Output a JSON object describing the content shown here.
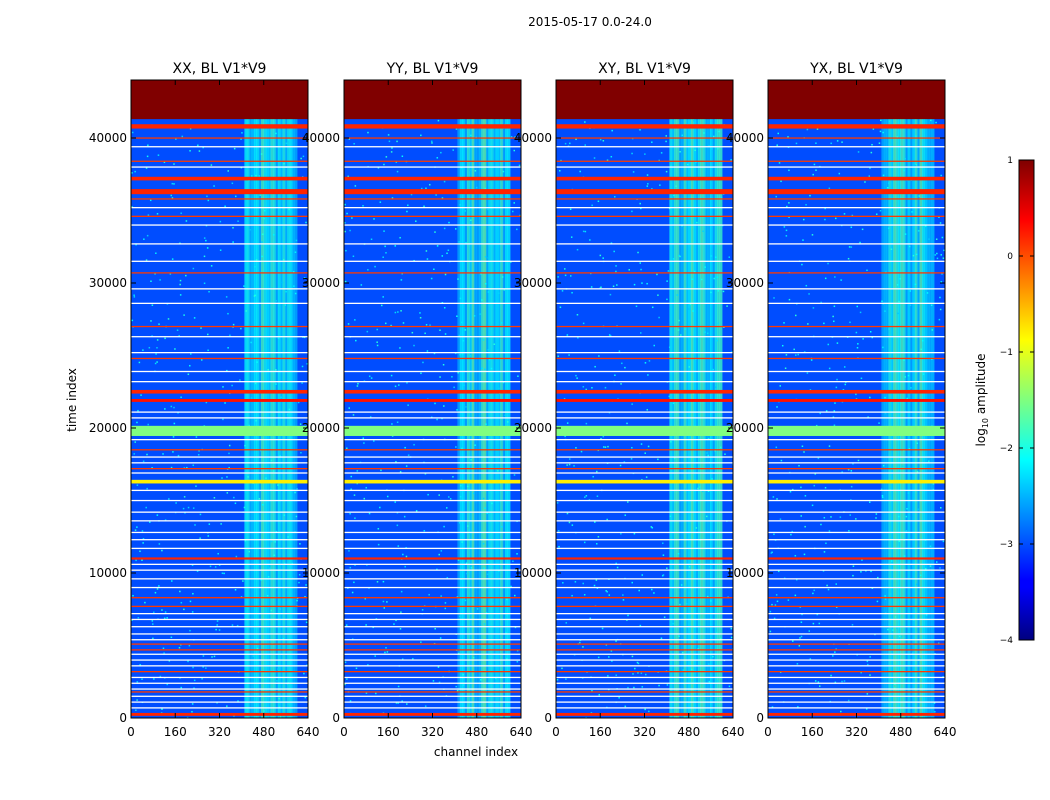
{
  "chart_data": {
    "type": "heatmap",
    "suptitle": "2015-05-17 0.0-24.0",
    "xlabel": "channel index",
    "ylabel": "time index",
    "xlim": [
      0,
      640
    ],
    "ylim": [
      0,
      44000
    ],
    "x_ticks": [
      0,
      160,
      320,
      480,
      640
    ],
    "x_tick_labels": [
      "0",
      "160",
      "320",
      "480",
      "640"
    ],
    "y_ticks": [
      0,
      10000,
      20000,
      30000,
      40000
    ],
    "y_tick_labels": [
      "0",
      "10000",
      "20000",
      "30000",
      "40000"
    ],
    "panels": [
      {
        "title": "XX, BL V1*V9"
      },
      {
        "title": "YY, BL V1*V9"
      },
      {
        "title": "XY, BL V1*V9"
      },
      {
        "title": "YX, BL V1*V9"
      }
    ],
    "colorbar": {
      "label_prefix": "log",
      "label_sub": "10",
      "label_suffix": " amplitude",
      "range": [
        -4,
        1
      ],
      "ticks": [
        1,
        0,
        -1,
        -2,
        -3,
        -4
      ],
      "tick_labels": [
        "1",
        "0",
        "−1",
        "−2",
        "−3",
        "−4"
      ],
      "colormap": "jet"
    },
    "features": {
      "saturated_block": {
        "y_range": [
          41300,
          44000
        ],
        "log_amp": 1.0
      },
      "rfi_band": {
        "x_range": [
          410,
          600
        ],
        "log_amp": -2.0
      },
      "background_log_amp": -3.0,
      "thick_lines": [
        {
          "y": 19800,
          "h": 700,
          "log_amp": -1.5
        },
        {
          "y": 36300,
          "h": 350,
          "log_amp": 0.2
        },
        {
          "y": 37200,
          "h": 250,
          "log_amp": 0.2
        },
        {
          "y": 40800,
          "h": 300,
          "log_amp": 0.2
        },
        {
          "y": 22500,
          "h": 250,
          "log_amp": 0.2
        },
        {
          "y": 21900,
          "h": 200,
          "log_amp": 0.3
        },
        {
          "y": 16300,
          "h": 250,
          "log_amp": -0.8
        },
        {
          "y": 11000,
          "h": 150,
          "log_amp": 0.2
        },
        {
          "y": 250,
          "h": 200,
          "log_amp": 0.2
        }
      ],
      "thin_lines_orange": [
        40000,
        38400,
        35800,
        34600,
        30700,
        27000,
        24800,
        18500,
        17200,
        8300,
        7700,
        5100,
        4700,
        3200,
        1800
      ],
      "thin_lines_white": [
        39400,
        38000,
        35200,
        34000,
        32700,
        31500,
        29600,
        28600,
        26300,
        25200,
        23900,
        23200,
        21100,
        20700,
        19200,
        18000,
        17600,
        16900,
        15700,
        15000,
        14200,
        13600,
        12800,
        12300,
        11700,
        10600,
        10200,
        9600,
        9000,
        7200,
        6800,
        6300,
        5800,
        5400,
        4400,
        4000,
        3600,
        2800,
        2400,
        2000,
        1500,
        1100,
        700
      ]
    }
  }
}
